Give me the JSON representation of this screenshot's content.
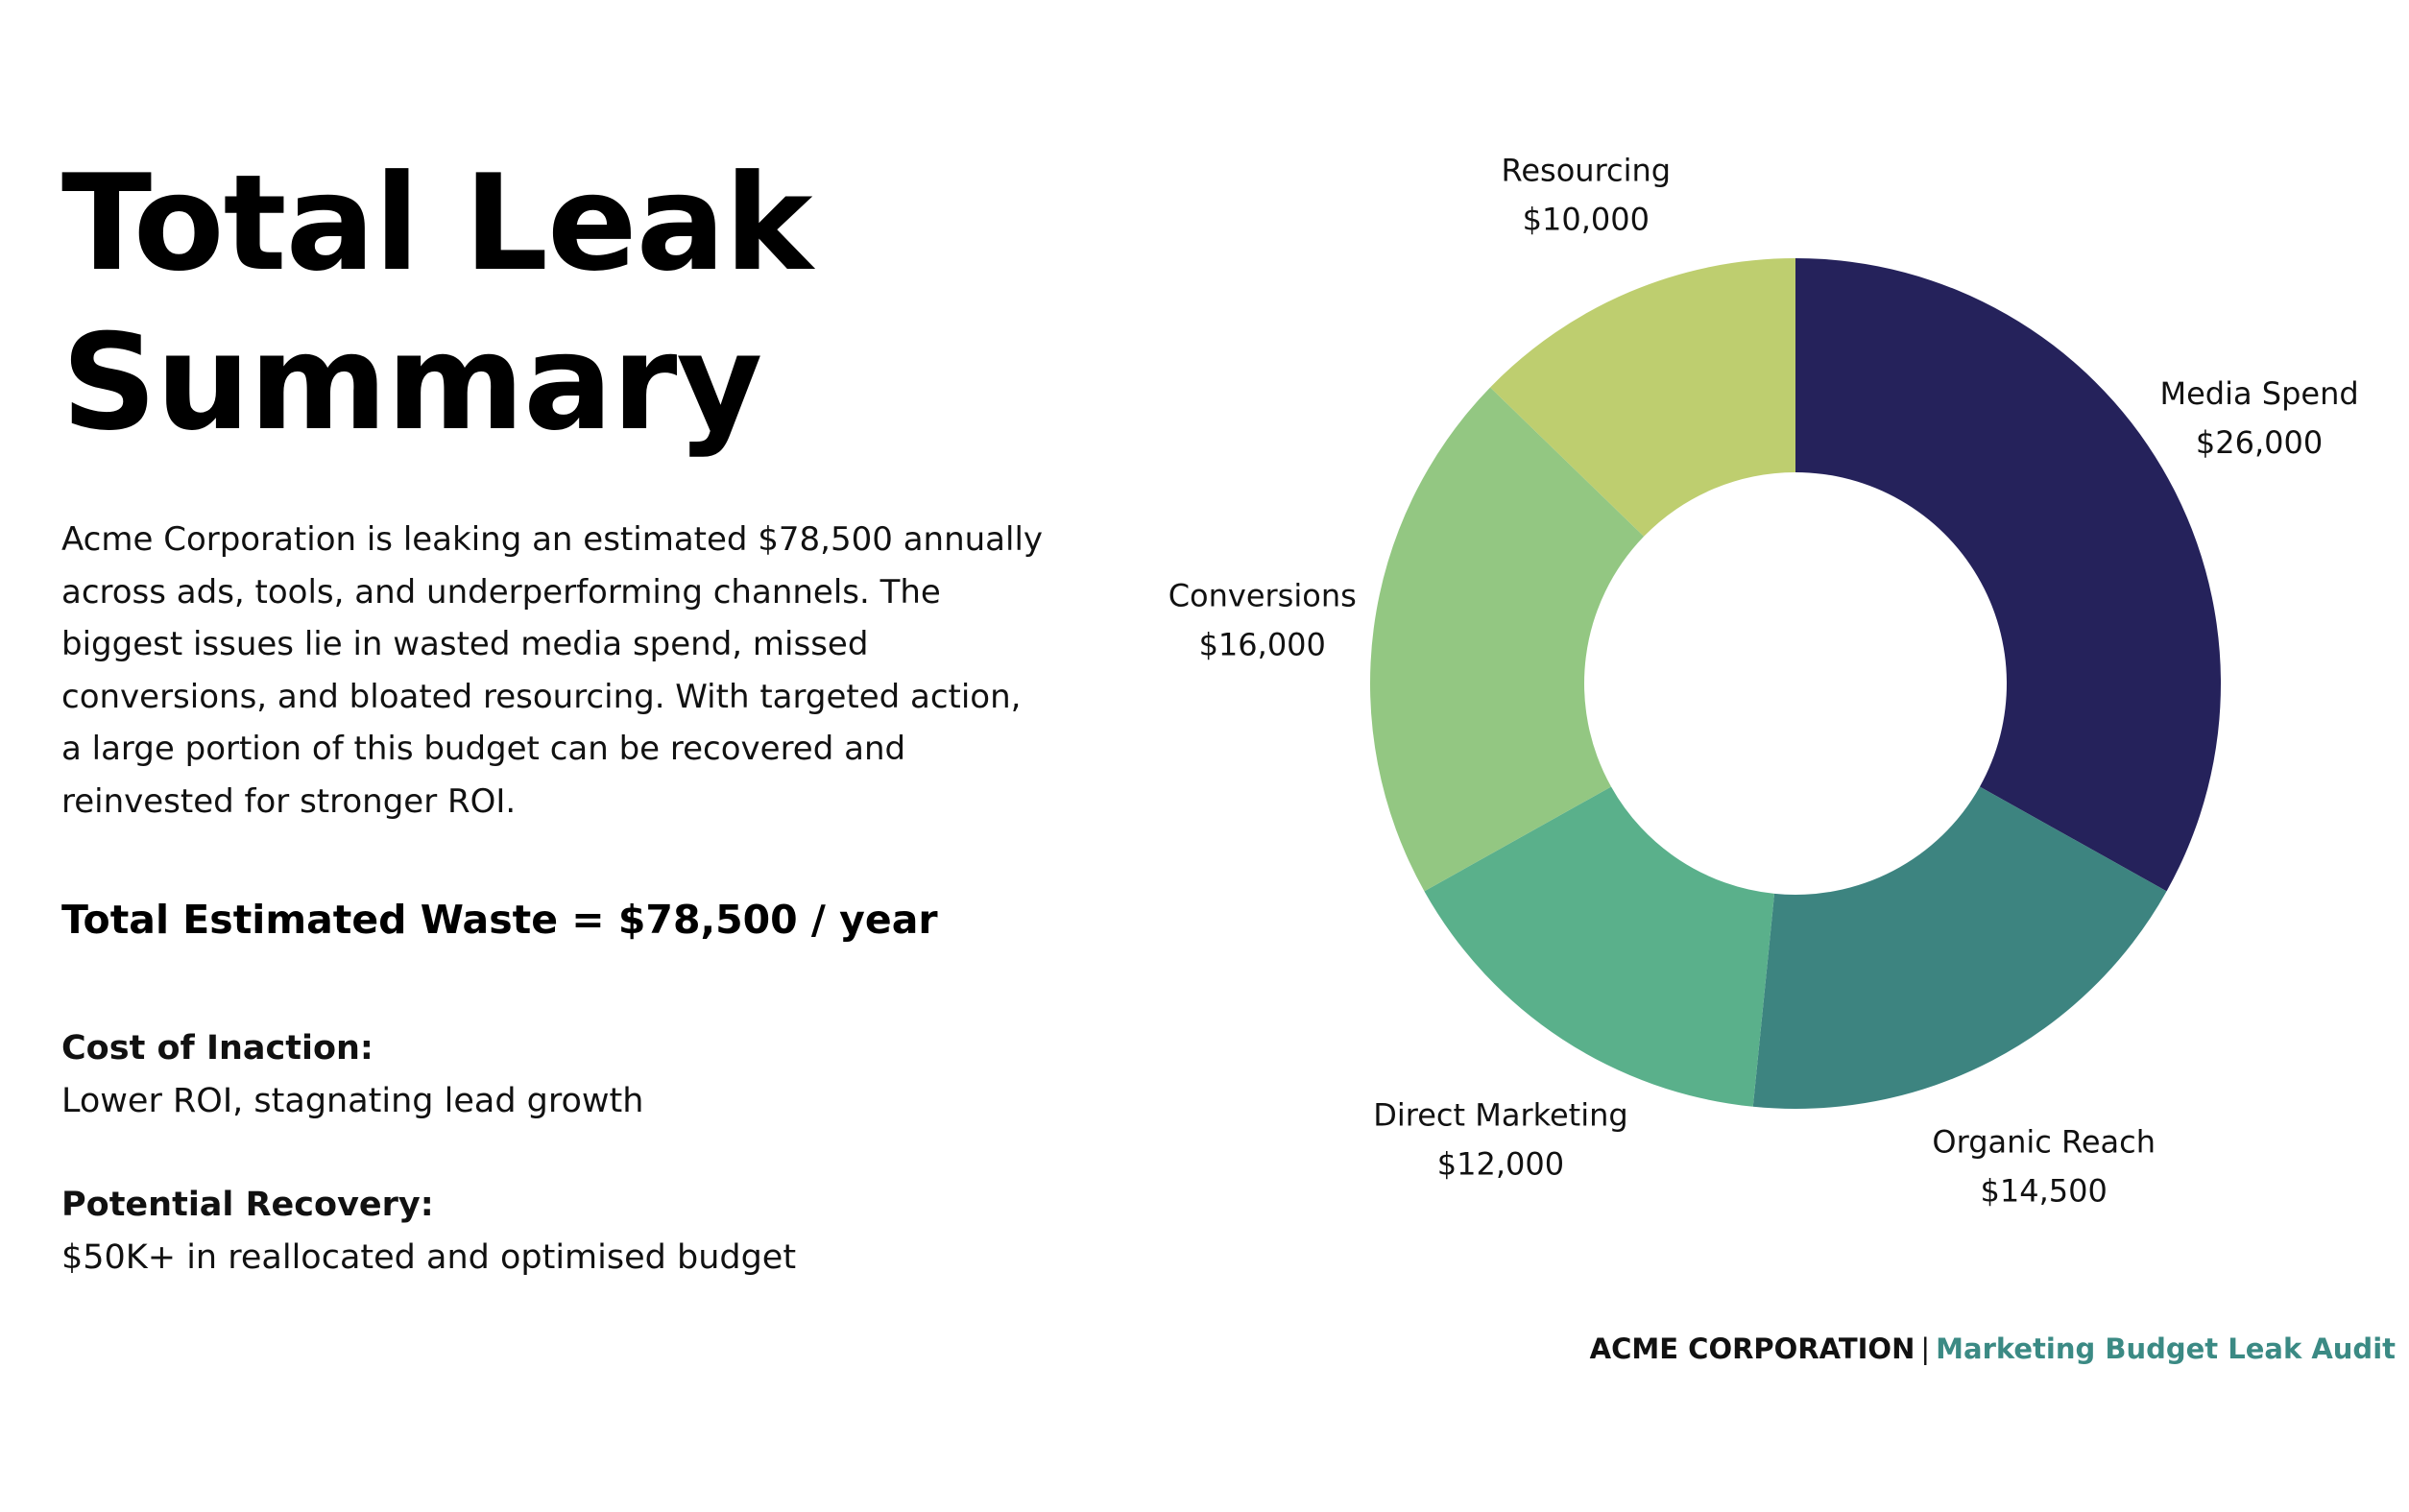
{
  "slide": {
    "title_line1": "Total Leak",
    "title_line2": "Summary",
    "intro": "Acme Corporation is leaking an estimated $78,500 annually across ads, tools, and underperforming channels. The biggest issues lie in wasted media spend, missed conversions, and bloated resourcing. With targeted action, a large portion of this budget can be recovered and reinvested for stronger ROI.",
    "total": "Total Estimated Waste = $78,500 / year",
    "cost_label": "Cost of Inaction:",
    "cost_value": "Lower ROI, stagnating lead growth",
    "recovery_label": "Potential Recovery:",
    "recovery_value": "$50K+ in reallocated and optimised budget"
  },
  "footer": {
    "company": "ACME CORPORATION",
    "separator": "|",
    "subtitle": "Marketing Budget Leak Audit",
    "subtitle_color": "#3b8a84"
  },
  "chart_data": {
    "type": "pie",
    "style": "donut",
    "legend": "none",
    "total": 78500,
    "slices": [
      {
        "name": "Media Spend",
        "value": 26000,
        "label": "$26,000",
        "color": "#25225b"
      },
      {
        "name": "Organic Reach",
        "value": 14500,
        "label": "$14,500",
        "color": "#3d8480"
      },
      {
        "name": "Direct Marketing",
        "value": 12000,
        "label": "$12,000",
        "color": "#5ab08b"
      },
      {
        "name": "Conversions",
        "value": 16000,
        "label": "$16,000",
        "color": "#93c782"
      },
      {
        "name": "Resourcing",
        "value": 10000,
        "label": "$10,000",
        "color": "#bece6f"
      }
    ]
  }
}
